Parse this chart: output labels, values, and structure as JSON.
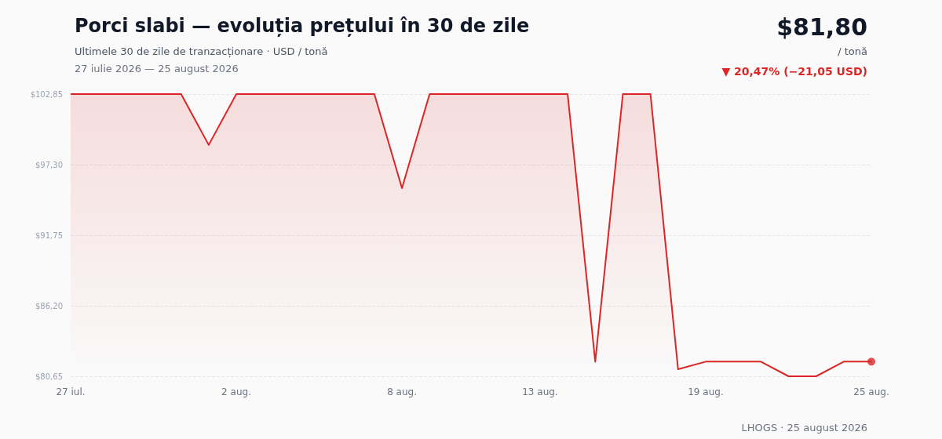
{
  "chart_data": {
    "type": "area",
    "title": "Porci slabi — evoluția prețului în 30 de zile",
    "subtitle": "Ultimele 30 de zile de tranzacționare · USD / tonă",
    "annotations": [
      "27 iulie 2026 — 25 august 2026",
      "$81,80",
      "/ tonă",
      "▼ 20,47% (−21,05 USD)",
      "LHOGS · 25 august 2026"
    ],
    "categories": [
      "27 iul.",
      null,
      null,
      null,
      null,
      null,
      "2 aug.",
      null,
      null,
      null,
      null,
      null,
      "8 aug.",
      null,
      null,
      null,
      null,
      "13 aug.",
      null,
      null,
      null,
      null,
      null,
      "19 aug.",
      null,
      null,
      null,
      null,
      null,
      "25 aug."
    ],
    "series": [
      {
        "color": "#dc2626",
        "values": [
          102.85,
          102.85,
          102.85,
          102.85,
          102.85,
          98.85,
          102.85,
          102.85,
          102.85,
          102.85,
          102.85,
          102.85,
          95.45,
          102.85,
          102.85,
          102.85,
          102.85,
          102.85,
          102.85,
          81.8,
          102.85,
          102.85,
          81.2,
          81.8,
          81.8,
          81.8,
          80.65,
          80.65,
          81.8,
          81.8
        ]
      },
      {
        "type": "scatter",
        "marker": "circle",
        "color": "#dc2626",
        "values": [
          null,
          null,
          null,
          null,
          null,
          null,
          null,
          null,
          null,
          null,
          null,
          null,
          null,
          null,
          null,
          null,
          null,
          null,
          null,
          null,
          null,
          null,
          null,
          null,
          null,
          null,
          null,
          null,
          null,
          81.8
        ]
      }
    ],
    "ylim": [
      80.65,
      102.85
    ],
    "yticks": [
      {
        "value": 80.65,
        "label": "$80,65"
      },
      {
        "value": 86.2,
        "label": "$86,20"
      },
      {
        "value": 91.75,
        "label": "$91,75"
      },
      {
        "value": 97.3,
        "label": "$97,30"
      },
      {
        "value": 102.85,
        "label": "$102,85"
      }
    ],
    "grid": "y",
    "marker": "none",
    "line_style": "solid"
  }
}
